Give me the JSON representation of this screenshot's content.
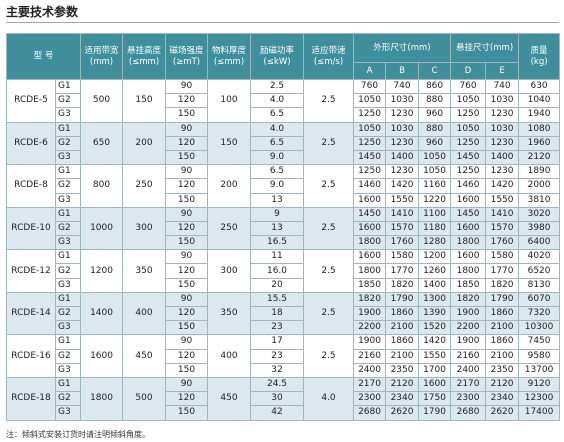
{
  "title": "主要技术参数",
  "table": {
    "header": {
      "model": "型 号",
      "columns": [
        {
          "label": "适用带宽",
          "unit": "(mm)"
        },
        {
          "label": "悬挂高度",
          "unit": "(≤mm)"
        },
        {
          "label": "磁场强度",
          "unit": "(≥mT)"
        },
        {
          "label": "物料厚度",
          "unit": "(≤mm)"
        },
        {
          "label": "励磁功率",
          "unit": "(≤kW)"
        },
        {
          "label": "适应带速",
          "unit": "(≤m/s)"
        }
      ],
      "dims": {
        "label": "外形尺寸(mm)",
        "cols": [
          "A",
          "B",
          "C"
        ]
      },
      "hang": {
        "label": "悬挂尺寸(mm)",
        "cols": [
          "D",
          "E"
        ]
      },
      "mass": {
        "label": "质量",
        "unit": "(kg)"
      }
    },
    "groups": [
      {
        "model": "RCDE-5",
        "width": "500",
        "height": "150",
        "thickness": "100",
        "speed": "2.5",
        "rows": [
          [
            "G1",
            "90",
            "2.5",
            "760",
            "740",
            "860",
            "760",
            "740",
            "630"
          ],
          [
            "G2",
            "120",
            "4.0",
            "1050",
            "1030",
            "880",
            "1050",
            "1030",
            "1040"
          ],
          [
            "G3",
            "150",
            "6.5",
            "1250",
            "1230",
            "960",
            "1250",
            "1230",
            "1940"
          ]
        ]
      },
      {
        "model": "RCDE-6",
        "width": "650",
        "height": "200",
        "thickness": "150",
        "speed": "2.5",
        "rows": [
          [
            "G1",
            "90",
            "4.0",
            "1050",
            "1030",
            "880",
            "1050",
            "1030",
            "1080"
          ],
          [
            "G2",
            "120",
            "6.5",
            "1250",
            "1230",
            "960",
            "1250",
            "1230",
            "1960"
          ],
          [
            "G3",
            "150",
            "9.0",
            "1450",
            "1400",
            "1050",
            "1450",
            "1400",
            "2120"
          ]
        ]
      },
      {
        "model": "RCDE-8",
        "width": "800",
        "height": "250",
        "thickness": "200",
        "speed": "2.5",
        "rows": [
          [
            "G1",
            "90",
            "6.5",
            "1250",
            "1230",
            "1050",
            "1250",
            "1230",
            "1890"
          ],
          [
            "G2",
            "120",
            "9.0",
            "1460",
            "1420",
            "1160",
            "1460",
            "1420",
            "2000"
          ],
          [
            "G3",
            "150",
            "13",
            "1600",
            "1550",
            "1220",
            "1600",
            "1550",
            "3810"
          ]
        ]
      },
      {
        "model": "RCDE-10",
        "width": "1000",
        "height": "300",
        "thickness": "250",
        "speed": "2.5",
        "rows": [
          [
            "G1",
            "90",
            "9",
            "1450",
            "1410",
            "1100",
            "1450",
            "1410",
            "3020"
          ],
          [
            "G2",
            "120",
            "13",
            "1600",
            "1570",
            "1180",
            "1600",
            "1570",
            "3980"
          ],
          [
            "G3",
            "150",
            "16.5",
            "1800",
            "1760",
            "1280",
            "1800",
            "1760",
            "6400"
          ]
        ]
      },
      {
        "model": "RCDE-12",
        "width": "1200",
        "height": "350",
        "thickness": "300",
        "speed": "2.5",
        "rows": [
          [
            "G1",
            "90",
            "11",
            "1600",
            "1580",
            "1200",
            "1600",
            "1580",
            "4020"
          ],
          [
            "G2",
            "120",
            "16.0",
            "1800",
            "1770",
            "1260",
            "1800",
            "1770",
            "6520"
          ],
          [
            "G3",
            "150",
            "20",
            "1850",
            "1820",
            "1400",
            "1850",
            "1820",
            "8130"
          ]
        ]
      },
      {
        "model": "RCDE-14",
        "width": "1400",
        "height": "400",
        "thickness": "350",
        "speed": "2.5",
        "rows": [
          [
            "G1",
            "90",
            "15.5",
            "1820",
            "1790",
            "1300",
            "1820",
            "1790",
            "6070"
          ],
          [
            "G2",
            "120",
            "18",
            "1900",
            "1860",
            "1390",
            "1900",
            "1860",
            "7320"
          ],
          [
            "G3",
            "150",
            "23",
            "2200",
            "2100",
            "1520",
            "2200",
            "2100",
            "10300"
          ]
        ]
      },
      {
        "model": "RCDE-16",
        "width": "1600",
        "height": "450",
        "thickness": "400",
        "speed": "2.5",
        "rows": [
          [
            "G1",
            "90",
            "17",
            "1900",
            "1860",
            "1420",
            "1900",
            "1860",
            "7450"
          ],
          [
            "G2",
            "120",
            "23",
            "2160",
            "2100",
            "1550",
            "2160",
            "2100",
            "9580"
          ],
          [
            "G3",
            "150",
            "32",
            "2400",
            "2350",
            "1700",
            "2400",
            "2350",
            "13700"
          ]
        ]
      },
      {
        "model": "RCDE-18",
        "width": "1800",
        "height": "500",
        "thickness": "450",
        "speed": "4.0",
        "rows": [
          [
            "G1",
            "90",
            "24.5",
            "2170",
            "2120",
            "1600",
            "2170",
            "2120",
            "9120"
          ],
          [
            "G2",
            "120",
            "30",
            "2300",
            "2340",
            "1750",
            "2300",
            "2340",
            "12300"
          ],
          [
            "G3",
            "150",
            "42",
            "2680",
            "2620",
            "1790",
            "2680",
            "2620",
            "17400"
          ]
        ]
      }
    ]
  },
  "note": "注：倾斜式安装订货时请注明倾斜角度。"
}
